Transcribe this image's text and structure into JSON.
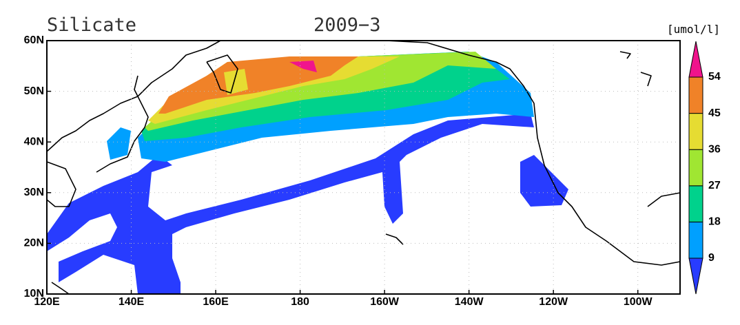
{
  "title": "Silicate",
  "date": "2009−3",
  "unit": "[umol/l]",
  "map": {
    "lon_labels": [
      "120E",
      "140E",
      "160E",
      "180",
      "160W",
      "140W",
      "120W",
      "100W"
    ],
    "lat_labels": [
      "10N",
      "20N",
      "30N",
      "40N",
      "50N",
      "60N"
    ]
  },
  "colorbar": {
    "levels": [
      9,
      18,
      27,
      36,
      45,
      54
    ],
    "colors": [
      "#283cff",
      "#00a0ff",
      "#00d28c",
      "#a0e632",
      "#e6dc32",
      "#f08228",
      "#f0148c"
    ]
  }
}
